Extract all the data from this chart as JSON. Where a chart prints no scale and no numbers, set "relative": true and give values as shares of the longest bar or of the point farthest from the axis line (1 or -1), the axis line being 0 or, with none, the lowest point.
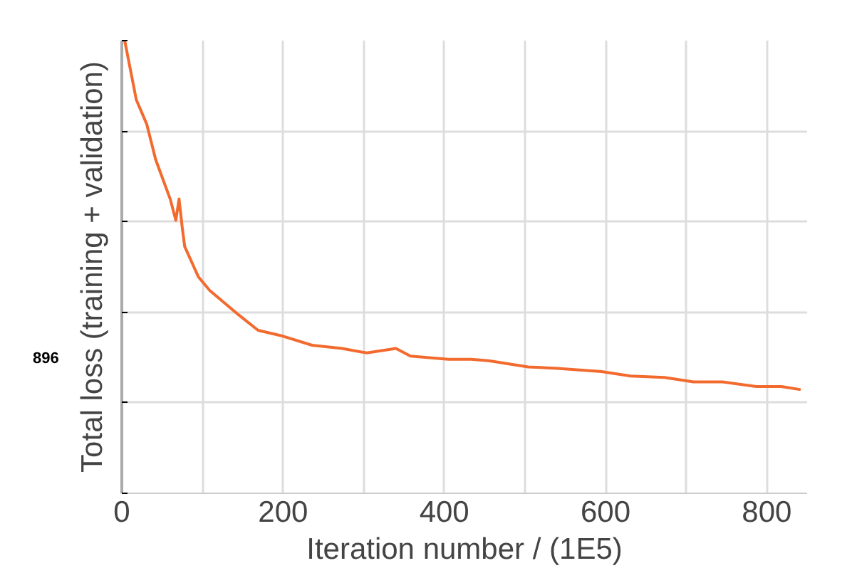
{
  "chart_data": {
    "type": "line",
    "relative": true,
    "xlabel": "Iteration number / (1E5)",
    "ylabel": "Total loss (training + validation)",
    "annotations": [
      "896"
    ],
    "x": [
      3.6,
      18,
      31,
      42,
      60,
      67,
      71,
      75,
      78,
      95,
      109,
      127,
      145,
      169,
      200,
      236,
      273,
      304,
      340,
      358,
      405,
      433,
      455,
      504,
      540,
      595,
      631,
      673,
      709,
      745,
      787,
      818,
      842
    ],
    "series": [
      {
        "color": "#f26a2e",
        "values": [
          1.0,
          0.869,
          0.815,
          0.737,
          0.65,
          0.603,
          0.65,
          0.586,
          0.545,
          0.478,
          0.448,
          0.421,
          0.394,
          0.36,
          0.347,
          0.327,
          0.32,
          0.31,
          0.32,
          0.303,
          0.296,
          0.296,
          0.293,
          0.279,
          0.276,
          0.269,
          0.259,
          0.256,
          0.246,
          0.246,
          0.236,
          0.236,
          0.229
        ]
      }
    ],
    "xlim": [
      0,
      850
    ],
    "xticks": [
      0,
      {
        "value": 100,
        "label": null
      },
      200,
      {
        "value": 300,
        "label": null
      },
      400,
      {
        "value": 500,
        "label": null
      },
      600,
      {
        "value": 700,
        "label": null
      },
      800
    ],
    "grid": true,
    "marker": "none",
    "line_style": "solid"
  }
}
